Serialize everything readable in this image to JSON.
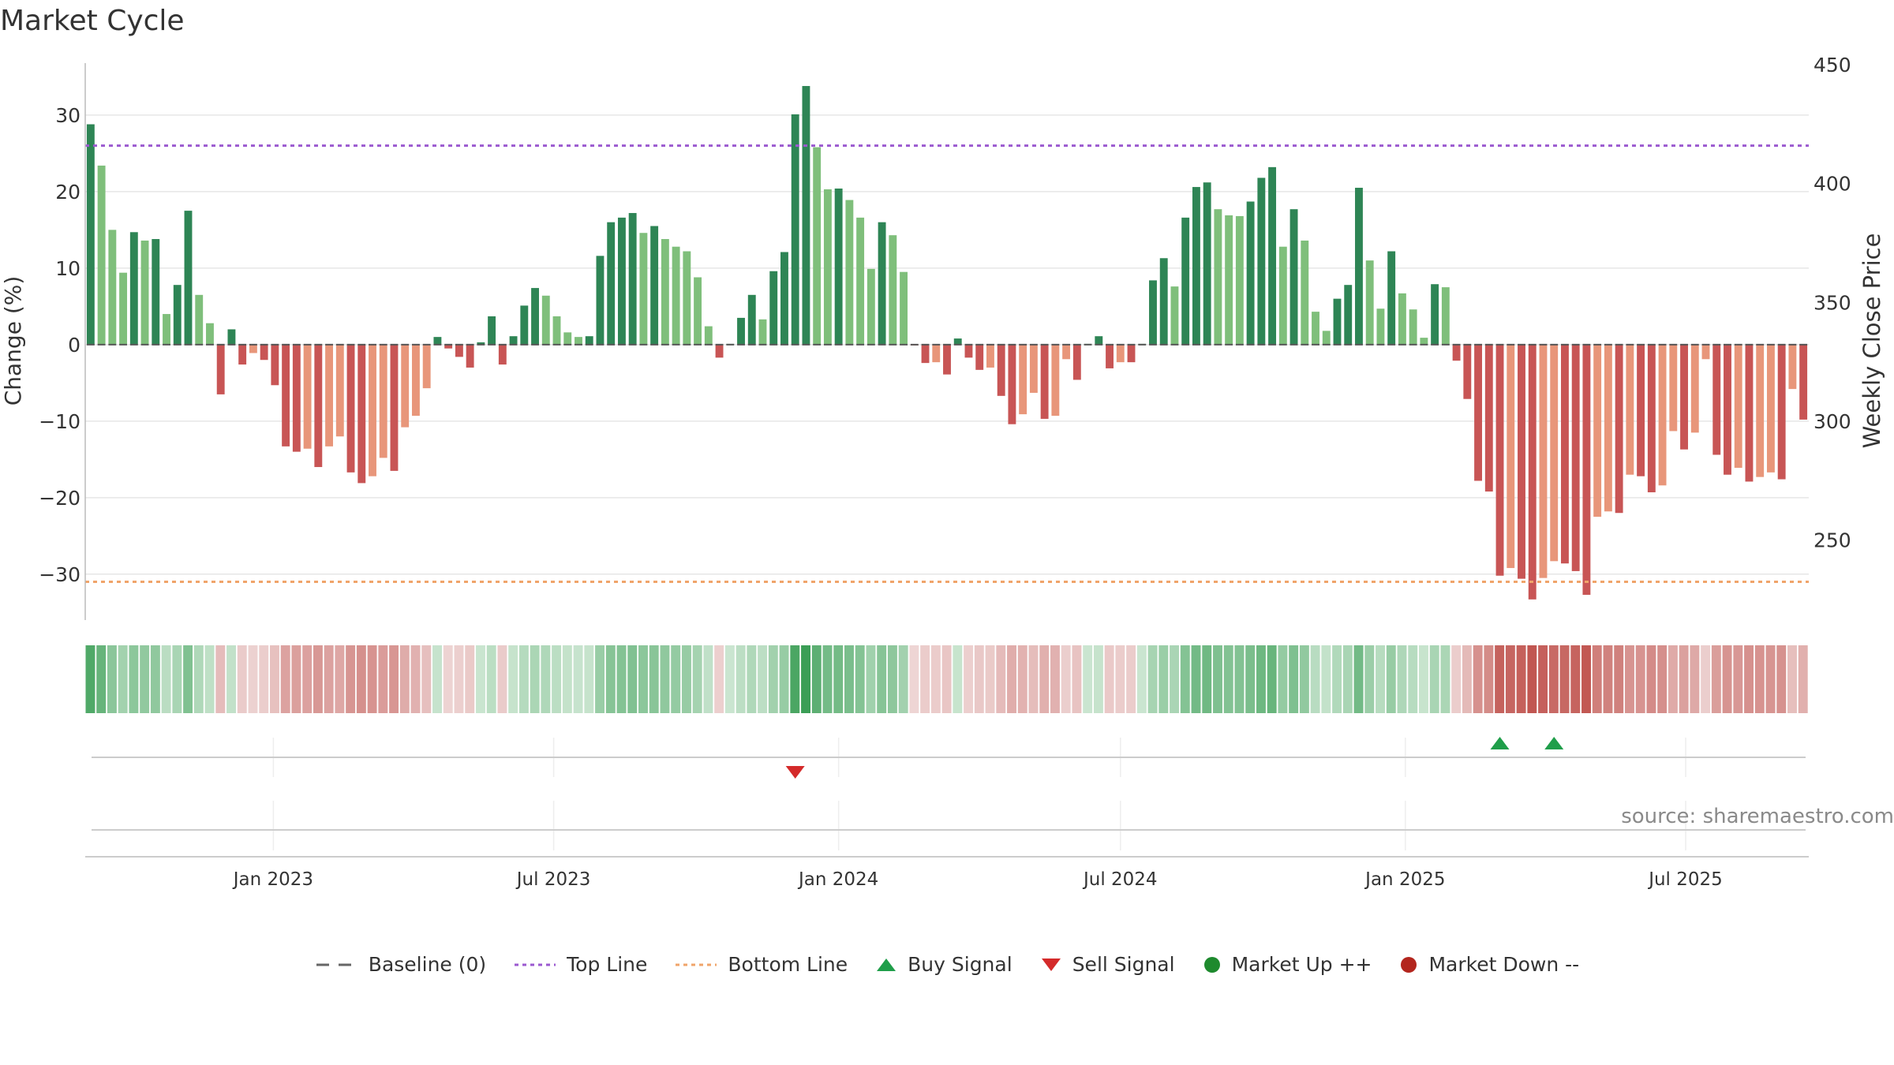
{
  "title": "Market Cycle",
  "source": "source: sharemaestro.com",
  "chart_data": {
    "type": "bar",
    "title": "Market Cycle",
    "ylabel": "Change (%)",
    "y2label": "Weekly Close Price",
    "ylim": [
      -36,
      37
    ],
    "y2lim": [
      215,
      450
    ],
    "yticks": [
      30,
      20,
      10,
      0,
      -10,
      -20,
      -30
    ],
    "ytick_labels": [
      "30",
      "20",
      "10",
      "0",
      "−10",
      "−20",
      "−30"
    ],
    "y2ticks": [
      450,
      400,
      350,
      300,
      250
    ],
    "x_start": "2022-09-05",
    "x_step_days": 7,
    "xticks": [
      {
        "date": "2023-01-01",
        "label": "Jan 2023"
      },
      {
        "date": "2023-07-01",
        "label": "Jul 2023"
      },
      {
        "date": "2024-01-01",
        "label": "Jan 2024"
      },
      {
        "date": "2024-07-01",
        "label": "Jul 2024"
      },
      {
        "date": "2025-01-01",
        "label": "Jan 2025"
      },
      {
        "date": "2025-07-01",
        "label": "Jul 2025"
      }
    ],
    "top_line": 26,
    "bottom_line": -31,
    "values": [
      28.8,
      23.4,
      15,
      9.4,
      14.7,
      13.6,
      13.8,
      4,
      7.8,
      17.5,
      6.5,
      2.8,
      -6.5,
      2,
      -2.6,
      -1.1,
      -2,
      -5.3,
      -13.3,
      -14,
      -13.6,
      -16,
      -13.3,
      -12,
      -16.7,
      -18.1,
      -17.2,
      -14.8,
      -16.5,
      -10.8,
      -9.3,
      -5.7,
      1,
      -0.5,
      -1.6,
      -3,
      0.3,
      3.7,
      -2.6,
      1.1,
      5.1,
      7.4,
      6.4,
      3.7,
      1.6,
      1,
      1.1,
      11.6,
      16,
      16.6,
      17.2,
      14.6,
      15.5,
      13.8,
      12.8,
      12.2,
      8.8,
      2.4,
      -1.7,
      0.1,
      3.5,
      6.5,
      3.3,
      9.6,
      12.1,
      30.1,
      33.8,
      25.8,
      20.3,
      20.4,
      18.9,
      16.6,
      9.9,
      16,
      14.3,
      9.5,
      -0.1,
      -2.4,
      -2.3,
      -3.9,
      0.8,
      -1.7,
      -3.3,
      -3,
      -6.7,
      -10.4,
      -9.1,
      -6.3,
      -9.7,
      -9.3,
      -1.9,
      -4.6,
      0.1,
      1.1,
      -3.1,
      -2.3,
      -2.3,
      0.1,
      8.4,
      11.3,
      7.6,
      16.6,
      20.6,
      21.2,
      17.7,
      16.9,
      16.8,
      18.7,
      21.8,
      23.2,
      12.8,
      17.7,
      13.6,
      4.3,
      1.8,
      6,
      7.8,
      20.5,
      11,
      4.7,
      12.2,
      6.7,
      4.6,
      0.9,
      7.9,
      7.5,
      -2.1,
      -7.1,
      -17.8,
      -19.2,
      -30.2,
      -29.2,
      -30.6,
      -33.3,
      -30.5,
      -28.3,
      -28.6,
      -29.6,
      -32.7,
      -22.5,
      -21.8,
      -22,
      -17,
      -17.2,
      -19.3,
      -18.4,
      -11.3,
      -13.7,
      -11.5,
      -1.9,
      -14.4,
      -17,
      -16.1,
      -17.9,
      -17.3,
      -16.7,
      -17.6,
      -5.8,
      -9.8
    ],
    "buy_signals": [
      130,
      135
    ],
    "sell_signals": [
      65
    ],
    "series_labels": [
      "Baseline (0)",
      "Top Line",
      "Bottom Line",
      "Buy Signal",
      "Sell Signal",
      "Market Up ++",
      "Market Down --"
    ],
    "colors": {
      "strong_up": "#2e8555",
      "weak_up": "#7fbf7b",
      "strong_down": "#c85555",
      "weak_down": "#e8967a",
      "top_line": "#9b59d0",
      "bottom_line": "#f0a46a",
      "buy": "#1f9e4a",
      "sell": "#d42a2a",
      "market_up": "#1e8a2e",
      "market_down": "#b3261e"
    },
    "grid": true
  },
  "legend": [
    {
      "label": "Baseline (0)",
      "icon": "dash-line-icon"
    },
    {
      "label": "Top Line",
      "icon": "dotted-purple-line-icon"
    },
    {
      "label": "Bottom Line",
      "icon": "dotted-orange-line-icon"
    },
    {
      "label": "Buy Signal",
      "icon": "triangle-up-icon"
    },
    {
      "label": "Sell Signal",
      "icon": "triangle-down-icon"
    },
    {
      "label": "Market Up ++",
      "icon": "green-dot-icon"
    },
    {
      "label": "Market Down --",
      "icon": "red-dot-icon"
    }
  ]
}
